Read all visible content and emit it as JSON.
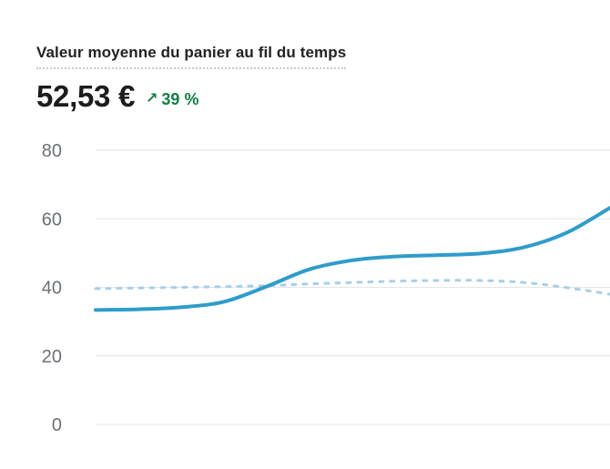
{
  "card": {
    "title": "Valeur moyenne du panier au fil du temps",
    "value": "52,53 €",
    "delta": {
      "arrow": "↗",
      "text": "39 %",
      "direction": "up"
    }
  },
  "colors": {
    "background": "#ffffff",
    "title_text": "#202223",
    "title_underline": "#c6cacd",
    "value_text": "#1a1c1d",
    "delta_positive": "#108043",
    "axis_label": "#6d7175",
    "gridline": "#e4e5e7",
    "current_line": "#2f9ccb",
    "previous_line": "#a8cfe8"
  },
  "chart_data": {
    "type": "line",
    "title": "Valeur moyenne du panier au fil du temps",
    "xlabel": "",
    "ylabel": "",
    "ylim": [
      0,
      80
    ],
    "yticks": [
      0,
      20,
      40,
      60,
      80
    ],
    "x_tick_labels_visible": false,
    "grid": "horizontal",
    "legend_position": "none",
    "x": [
      0,
      1,
      2,
      3,
      4,
      5,
      6,
      7,
      8,
      9,
      10,
      11,
      12
    ],
    "series": [
      {
        "name": "previous_period",
        "style": "dashed",
        "color": "#a8cfe8",
        "stroke_width": 3,
        "values": [
          39.6,
          39.8,
          40.0,
          40.2,
          40.5,
          41.0,
          41.4,
          41.8,
          42.0,
          42.0,
          41.4,
          39.9,
          38.0
        ]
      },
      {
        "name": "current_period",
        "style": "solid",
        "color": "#2f9ccb",
        "stroke_width": 4,
        "values": [
          33.4,
          33.6,
          34.2,
          35.8,
          40.3,
          45.3,
          47.9,
          49.0,
          49.4,
          49.9,
          51.7,
          56.0,
          63.2
        ]
      }
    ]
  }
}
